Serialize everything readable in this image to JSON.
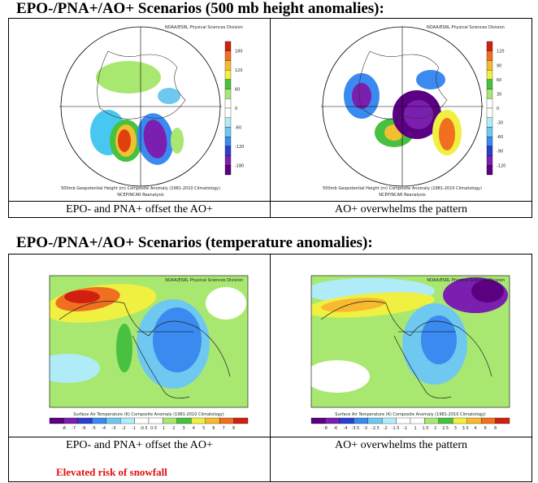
{
  "sections": [
    {
      "heading": "EPO-/PNA+/AO+ Scenarios (500 mb height anomalies):",
      "panels": [
        {
          "type": "polar",
          "source": "NOAA/ESRL Physical Sciences Division",
          "title": "500mb Geopotential Height (m) Composite Anomaly (1981-2010 Climatology)",
          "subtitle": "NCEP/NCAR Reanalysis",
          "colorbar": [
            "180",
            "120",
            "60",
            "0",
            "-60",
            "-120",
            "-180"
          ],
          "caption": "EPO- and PNA+ offset the AO+"
        },
        {
          "type": "polar2",
          "source": "NOAA/ESRL Physical Sciences Division",
          "title": "500mb Geopotential Height (m) Composite Anomaly (1981-2010 Climatology)",
          "subtitle": "NCEP/NCAR Reanalysis",
          "colorbar": [
            "120",
            "90",
            "60",
            "30",
            "0",
            "-30",
            "-60",
            "-90",
            "-120"
          ],
          "caption": "AO+ overwhelms the pattern"
        }
      ]
    },
    {
      "heading": "EPO-/PNA+/AO+ Scenarios (temperature  anomalies):",
      "panels": [
        {
          "type": "latlon",
          "source": "NOAA/ESRL Physical Sciences Division",
          "title": "Surface Air Temperature (K) Composite Anomaly (1981-2010 Climatology)",
          "colorbar": [
            "-8",
            "-7",
            "-6",
            "-5",
            "-4",
            "-3",
            "-2",
            "-1",
            "-0.5",
            "0.5",
            "1",
            "2",
            "3",
            "4",
            "5",
            "6",
            "7",
            "8"
          ],
          "caption": "EPO- and PNA+ offset the AO+"
        },
        {
          "type": "latlon2",
          "source": "NOAA/ESRL Physical Sciences Division",
          "title": "Surface Air Temperature (K) Composite Anomaly (1981-2010 Climatology)",
          "colorbar": [
            "-8",
            "-6",
            "-4",
            "-3.5",
            "-3",
            "-2.5",
            "-2",
            "-1.5",
            "-1",
            "1",
            "1.5",
            "2",
            "2.5",
            "3",
            "3.5",
            "4",
            "6",
            "8"
          ],
          "caption": "AO+ overwhelms the pattern"
        }
      ]
    }
  ],
  "note": "Elevated risk of snowfall"
}
